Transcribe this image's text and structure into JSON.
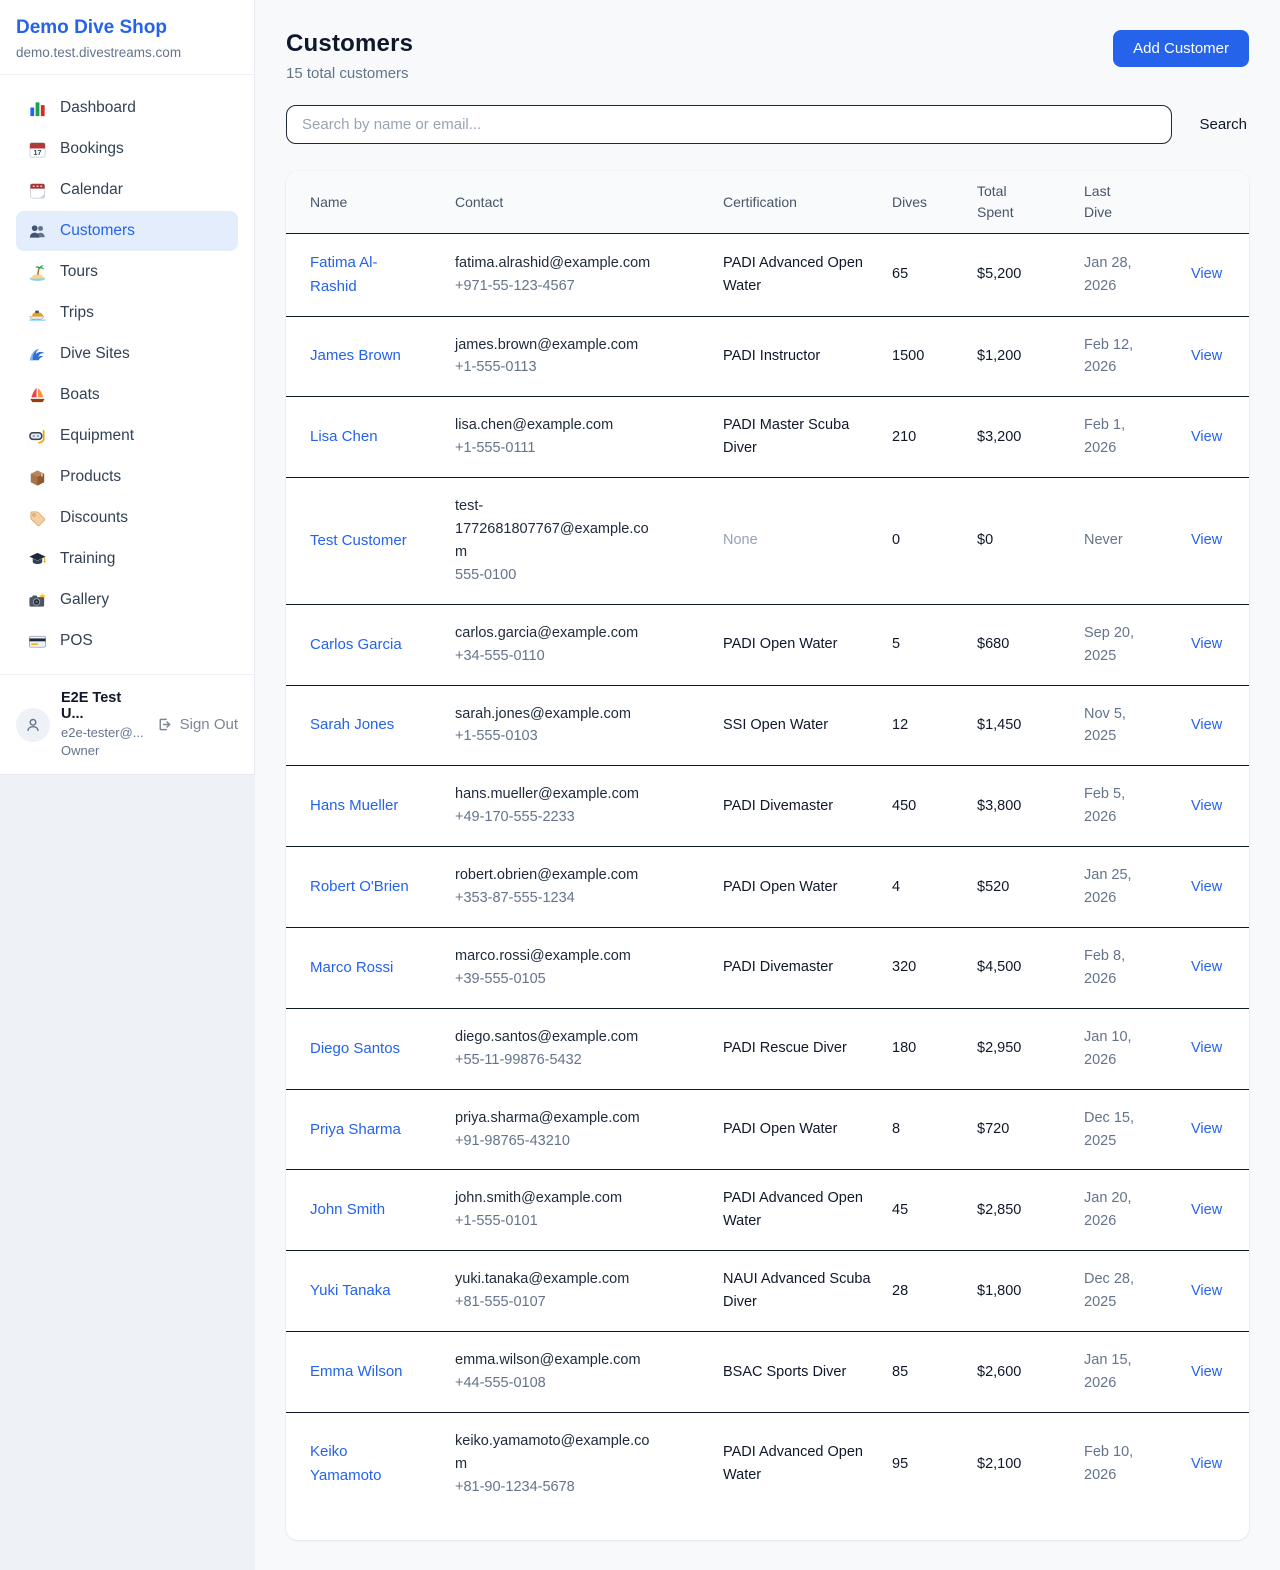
{
  "colors": {
    "accent": "#2563eb",
    "accent_light_bg": "#e3edfb",
    "row_divider": "#111827",
    "muted_text": "#64748b",
    "table_header_bg": "#f8fafc"
  },
  "sidebar": {
    "title": "Demo Dive Shop",
    "domain": "demo.test.divestreams.com",
    "items": [
      {
        "label": "Dashboard",
        "icon": "bar-chart-icon",
        "active": false
      },
      {
        "label": "Bookings",
        "icon": "bookings-calendar-icon",
        "active": false
      },
      {
        "label": "Calendar",
        "icon": "calendar-icon",
        "active": false
      },
      {
        "label": "Customers",
        "icon": "people-icon",
        "active": true
      },
      {
        "label": "Tours",
        "icon": "island-icon",
        "active": false
      },
      {
        "label": "Trips",
        "icon": "speedboat-icon",
        "active": false
      },
      {
        "label": "Dive Sites",
        "icon": "wave-icon",
        "active": false
      },
      {
        "label": "Boats",
        "icon": "sailboat-icon",
        "active": false
      },
      {
        "label": "Equipment",
        "icon": "dive-mask-icon",
        "active": false
      },
      {
        "label": "Products",
        "icon": "package-icon",
        "active": false
      },
      {
        "label": "Discounts",
        "icon": "tag-icon",
        "active": false
      },
      {
        "label": "Training",
        "icon": "graduation-cap-icon",
        "active": false
      },
      {
        "label": "Gallery",
        "icon": "camera-icon",
        "active": false
      },
      {
        "label": "POS",
        "icon": "credit-card-icon",
        "active": false
      }
    ],
    "user": {
      "name": "E2E Test U...",
      "email": "e2e-tester@...",
      "role": "Owner",
      "sign_out_label": "Sign Out"
    }
  },
  "header": {
    "title": "Customers",
    "subtitle": "15 total customers",
    "add_button_label": "Add Customer"
  },
  "search": {
    "placeholder": "Search by name or email...",
    "button_label": "Search"
  },
  "table": {
    "columns": [
      "Name",
      "Contact",
      "Certification",
      "Dives",
      "Total Spent",
      "Last Dive",
      ""
    ],
    "action_label": "View",
    "rows": [
      {
        "name": "Fatima Al-Rashid",
        "email": "fatima.alrashid@example.com",
        "phone": "+971-55-123-4567",
        "certification": "PADI Advanced Open Water",
        "dives": "65",
        "total_spent": "$5,200",
        "last_dive": "Jan 28, 2026"
      },
      {
        "name": "James Brown",
        "email": "james.brown@example.com",
        "phone": "+1-555-0113",
        "certification": "PADI Instructor",
        "dives": "1500",
        "total_spent": "$1,200",
        "last_dive": "Feb 12, 2026"
      },
      {
        "name": "Lisa Chen",
        "email": "lisa.chen@example.com",
        "phone": "+1-555-0111",
        "certification": "PADI Master Scuba Diver",
        "dives": "210",
        "total_spent": "$3,200",
        "last_dive": "Feb 1, 2026"
      },
      {
        "name": "Test Customer",
        "email": "test-1772681807767@example.com",
        "phone": "555-0100",
        "certification": "None",
        "dives": "0",
        "total_spent": "$0",
        "last_dive": "Never"
      },
      {
        "name": "Carlos Garcia",
        "email": "carlos.garcia@example.com",
        "phone": "+34-555-0110",
        "certification": "PADI Open Water",
        "dives": "5",
        "total_spent": "$680",
        "last_dive": "Sep 20, 2025"
      },
      {
        "name": "Sarah Jones",
        "email": "sarah.jones@example.com",
        "phone": "+1-555-0103",
        "certification": "SSI Open Water",
        "dives": "12",
        "total_spent": "$1,450",
        "last_dive": "Nov 5, 2025"
      },
      {
        "name": "Hans Mueller",
        "email": "hans.mueller@example.com",
        "phone": "+49-170-555-2233",
        "certification": "PADI Divemaster",
        "dives": "450",
        "total_spent": "$3,800",
        "last_dive": "Feb 5, 2026"
      },
      {
        "name": "Robert O'Brien",
        "email": "robert.obrien@example.com",
        "phone": "+353-87-555-1234",
        "certification": "PADI Open Water",
        "dives": "4",
        "total_spent": "$520",
        "last_dive": "Jan 25, 2026"
      },
      {
        "name": "Marco Rossi",
        "email": "marco.rossi@example.com",
        "phone": "+39-555-0105",
        "certification": "PADI Divemaster",
        "dives": "320",
        "total_spent": "$4,500",
        "last_dive": "Feb 8, 2026"
      },
      {
        "name": "Diego Santos",
        "email": "diego.santos@example.com",
        "phone": "+55-11-99876-5432",
        "certification": "PADI Rescue Diver",
        "dives": "180",
        "total_spent": "$2,950",
        "last_dive": "Jan 10, 2026"
      },
      {
        "name": "Priya Sharma",
        "email": "priya.sharma@example.com",
        "phone": "+91-98765-43210",
        "certification": "PADI Open Water",
        "dives": "8",
        "total_spent": "$720",
        "last_dive": "Dec 15, 2025"
      },
      {
        "name": "John Smith",
        "email": "john.smith@example.com",
        "phone": "+1-555-0101",
        "certification": "PADI Advanced Open Water",
        "dives": "45",
        "total_spent": "$2,850",
        "last_dive": "Jan 20, 2026"
      },
      {
        "name": "Yuki Tanaka",
        "email": "yuki.tanaka@example.com",
        "phone": "+81-555-0107",
        "certification": "NAUI Advanced Scuba Diver",
        "dives": "28",
        "total_spent": "$1,800",
        "last_dive": "Dec 28, 2025"
      },
      {
        "name": "Emma Wilson",
        "email": "emma.wilson@example.com",
        "phone": "+44-555-0108",
        "certification": "BSAC Sports Diver",
        "dives": "85",
        "total_spent": "$2,600",
        "last_dive": "Jan 15, 2026"
      },
      {
        "name": "Keiko Yamamoto",
        "email": "keiko.yamamoto@example.com",
        "phone": "+81-90-1234-5678",
        "certification": "PADI Advanced Open Water",
        "dives": "95",
        "total_spent": "$2,100",
        "last_dive": "Feb 10, 2026"
      }
    ]
  }
}
